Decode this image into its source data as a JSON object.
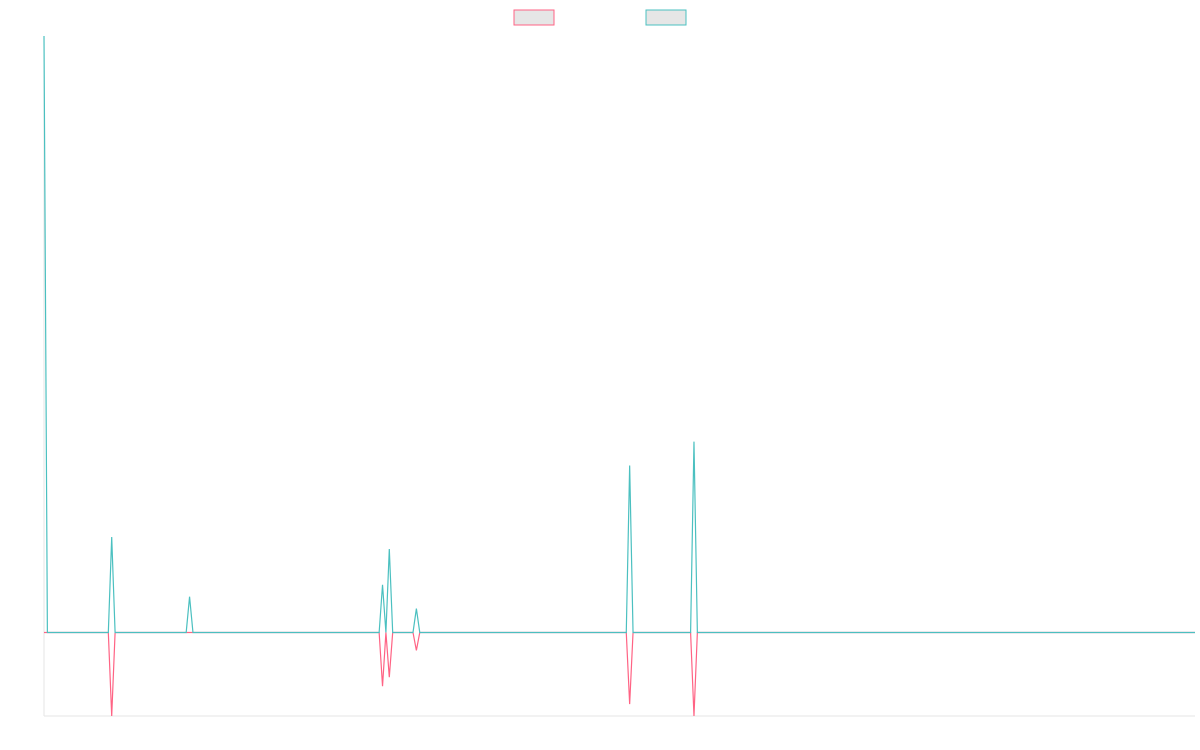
{
  "chart_data": {
    "type": "line",
    "x": [
      0,
      1,
      19,
      20,
      21,
      42,
      43,
      44,
      99,
      100,
      101,
      102,
      103,
      109,
      110,
      111,
      172,
      173,
      174,
      191,
      192,
      193,
      340
    ],
    "series": [
      {
        "color": "#ff6384",
        "values": [
          0,
          0,
          0,
          -14,
          0,
          0,
          0,
          0,
          0,
          -9,
          0,
          -7.5,
          0,
          0,
          -3,
          0,
          0,
          -12,
          0,
          0,
          -14,
          0,
          0
        ]
      },
      {
        "color": "#4bc0c0",
        "values": [
          100,
          0,
          0,
          16,
          0,
          0,
          6,
          0,
          0,
          8,
          0,
          14,
          0,
          0,
          4,
          0,
          0,
          28,
          0,
          0,
          32,
          0,
          0
        ]
      }
    ],
    "xlim": [
      0,
      340
    ],
    "ylim": [
      -14,
      100
    ],
    "legend": "top"
  }
}
